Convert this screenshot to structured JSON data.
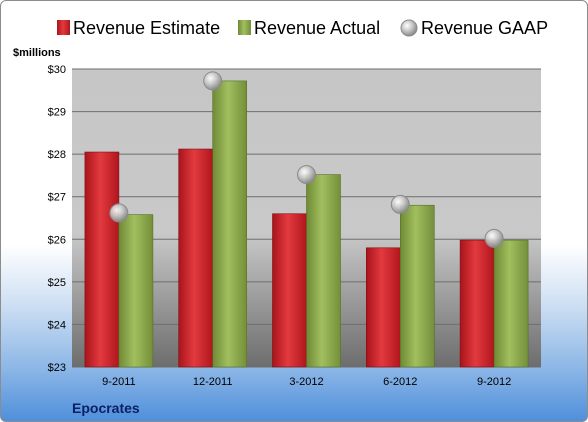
{
  "chart_data": {
    "type": "bar",
    "title": "",
    "ylabel": "$millions",
    "xlabel": "",
    "company": "Epocrates",
    "categories": [
      "9-2011",
      "12-2011",
      "3-2012",
      "6-2012",
      "9-2012"
    ],
    "series": [
      {
        "name": "Revenue Estimate",
        "type": "bar",
        "color": "#cc1f26",
        "values": [
          28.05,
          28.12,
          26.6,
          25.8,
          25.98
        ]
      },
      {
        "name": "Revenue Actual",
        "type": "bar",
        "color": "#8ba84a",
        "values": [
          26.58,
          29.72,
          27.52,
          26.8,
          25.98
        ]
      },
      {
        "name": "Revenue GAAP",
        "type": "marker",
        "color": "#b8b8b8",
        "values": [
          26.62,
          29.72,
          27.52,
          26.82,
          26.02
        ]
      }
    ],
    "yticks": [
      "$23",
      "$24",
      "$25",
      "$26",
      "$27",
      "$28",
      "$29",
      "$30"
    ],
    "ylim": [
      23,
      30
    ],
    "grid": true,
    "legend_position": "top"
  }
}
